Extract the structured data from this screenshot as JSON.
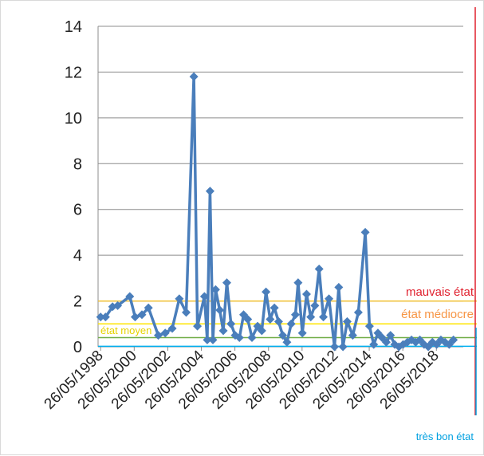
{
  "chart_data": {
    "type": "line",
    "x_labels": [
      "26/05/1998",
      "26/05/2000",
      "26/05/2002",
      "26/05/2004",
      "26/05/2006",
      "26/05/2008",
      "26/05/2010",
      "26/05/2012",
      "26/05/2014",
      "26/05/2016",
      "26/05/2018"
    ],
    "y_ticks": [
      "0",
      "2",
      "4",
      "6",
      "8",
      "10",
      "12",
      "14"
    ],
    "ylim": [
      0,
      14
    ],
    "xlim": [
      "1998-04-01",
      "2020-01-01"
    ],
    "grid": true,
    "series": [
      {
        "color": "#4a7ebb",
        "marker": "diamond",
        "points": [
          [
            "1998-05-26",
            1.3
          ],
          [
            "1998-09-10",
            1.3
          ],
          [
            "1999-02-10",
            1.75
          ],
          [
            "1999-06-01",
            1.8
          ],
          [
            "2000-02-20",
            2.2
          ],
          [
            "2000-06-15",
            1.3
          ],
          [
            "2000-11-10",
            1.4
          ],
          [
            "2001-04-01",
            1.7
          ],
          [
            "2001-11-01",
            0.5
          ],
          [
            "2002-04-01",
            0.6
          ],
          [
            "2002-09-01",
            0.8
          ],
          [
            "2003-02-01",
            2.1
          ],
          [
            "2003-07-01",
            1.5
          ],
          [
            "2003-12-15",
            11.8
          ],
          [
            "2004-03-01",
            0.9
          ],
          [
            "2004-08-01",
            2.2
          ],
          [
            "2004-10-01",
            0.3
          ],
          [
            "2004-12-01",
            6.8
          ],
          [
            "2005-02-01",
            0.3
          ],
          [
            "2005-04-01",
            2.5
          ],
          [
            "2005-07-01",
            1.6
          ],
          [
            "2005-09-15",
            0.7
          ],
          [
            "2005-12-01",
            2.8
          ],
          [
            "2006-03-01",
            1.0
          ],
          [
            "2006-06-01",
            0.5
          ],
          [
            "2006-09-01",
            0.4
          ],
          [
            "2006-12-01",
            1.4
          ],
          [
            "2007-03-01",
            1.2
          ],
          [
            "2007-06-01",
            0.4
          ],
          [
            "2007-10-01",
            0.9
          ],
          [
            "2008-01-01",
            0.7
          ],
          [
            "2008-04-01",
            2.4
          ],
          [
            "2008-07-01",
            1.2
          ],
          [
            "2008-10-01",
            1.7
          ],
          [
            "2009-01-01",
            1.1
          ],
          [
            "2009-04-01",
            0.5
          ],
          [
            "2009-07-01",
            0.2
          ],
          [
            "2009-10-01",
            1.0
          ],
          [
            "2010-01-01",
            1.4
          ],
          [
            "2010-03-01",
            2.8
          ],
          [
            "2010-06-01",
            0.6
          ],
          [
            "2010-09-01",
            2.3
          ],
          [
            "2010-12-01",
            1.3
          ],
          [
            "2011-03-01",
            1.8
          ],
          [
            "2011-06-01",
            3.4
          ],
          [
            "2011-09-01",
            1.3
          ],
          [
            "2012-01-01",
            2.1
          ],
          [
            "2012-05-01",
            0.0
          ],
          [
            "2012-08-01",
            2.6
          ],
          [
            "2012-11-01",
            0.0
          ],
          [
            "2013-02-01",
            1.1
          ],
          [
            "2013-06-01",
            0.5
          ],
          [
            "2013-10-01",
            1.5
          ],
          [
            "2014-03-01",
            5.0
          ],
          [
            "2014-06-01",
            0.9
          ],
          [
            "2014-09-01",
            0.1
          ],
          [
            "2014-12-01",
            0.6
          ],
          [
            "2015-03-01",
            0.4
          ],
          [
            "2015-06-01",
            0.2
          ],
          [
            "2015-09-01",
            0.5
          ],
          [
            "2015-12-01",
            0.1
          ],
          [
            "2016-03-01",
            0.0
          ],
          [
            "2016-06-01",
            0.1
          ],
          [
            "2016-09-01",
            0.2
          ],
          [
            "2016-12-01",
            0.3
          ],
          [
            "2017-03-01",
            0.2
          ],
          [
            "2017-06-01",
            0.3
          ],
          [
            "2017-09-01",
            0.1
          ],
          [
            "2017-12-01",
            0.0
          ],
          [
            "2018-03-01",
            0.2
          ],
          [
            "2018-06-01",
            0.1
          ],
          [
            "2018-09-01",
            0.3
          ],
          [
            "2018-12-01",
            0.2
          ],
          [
            "2019-03-01",
            0.1
          ],
          [
            "2019-06-01",
            0.3
          ]
        ]
      }
    ],
    "thresholds": [
      {
        "label": "mauvais état",
        "value": 2.0,
        "color": "#f2c231",
        "label_color": "#e0202e"
      },
      {
        "label": "état médiocre",
        "value": 1.0,
        "color": "#ffe600",
        "label_color": "#f79646"
      },
      {
        "label": "état moyen",
        "value": 0.4,
        "color": "#70ad47",
        "label_color": "#e6d200"
      },
      {
        "label": "très bon état",
        "value": 0.02,
        "color": "#00b0f0",
        "label_color": "#00a0e0"
      }
    ],
    "edge_markers": [
      {
        "color": "#e0202e"
      },
      {
        "color": "#00a0e0"
      }
    ]
  }
}
